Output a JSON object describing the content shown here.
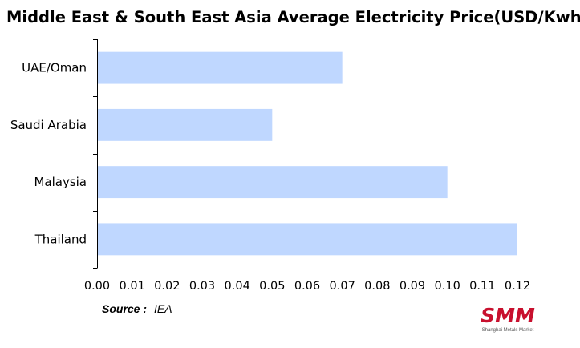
{
  "chart_data": {
    "type": "bar",
    "orientation": "horizontal",
    "title": "Middle East & South East Asia Average Electricity Price(USD/Kwh)",
    "categories": [
      "UAE/Oman",
      "Saudi Arabia",
      "Malaysia",
      "Thailand"
    ],
    "values": [
      0.07,
      0.05,
      0.1,
      0.12
    ],
    "xlim": [
      0,
      0.12
    ],
    "xticks": [
      "0.00",
      "0.01",
      "0.02",
      "0.03",
      "0.04",
      "0.05",
      "0.06",
      "0.07",
      "0.08",
      "0.09",
      "0.10",
      "0.11",
      "0.12"
    ],
    "grid": false,
    "legend": "none",
    "bar_color": "#bfd7ff"
  },
  "source": {
    "label": "Source :",
    "value": "IEA"
  },
  "logo": {
    "mark": "SMM",
    "subtitle": "Shanghai Metals Market",
    "color": "#c8102e"
  }
}
